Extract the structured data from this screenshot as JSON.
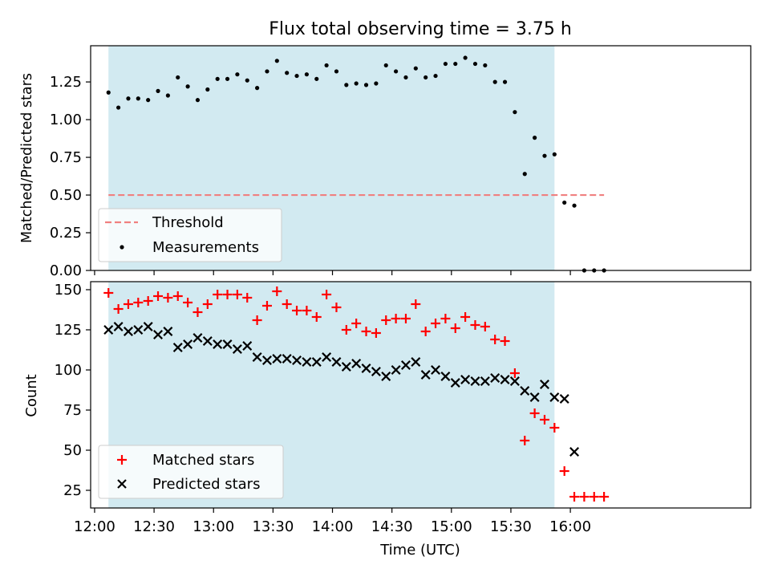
{
  "chart_data": [
    {
      "type": "scatter",
      "title": "Flux total observing time = 3.75 h",
      "xlabel": "",
      "ylabel": "Matched/Predicted stars",
      "xlim": [
        "11:58",
        "17:31"
      ],
      "ylim": [
        0,
        1.49
      ],
      "yticks": [
        0.0,
        0.25,
        0.5,
        0.75,
        1.0,
        1.25
      ],
      "ytick_labels": [
        "0.00",
        "0.25",
        "0.50",
        "0.75",
        "1.00",
        "1.25"
      ],
      "shaded_span": {
        "x0": "12:07",
        "x1": "15:52",
        "color": "#add8e6"
      },
      "threshold": {
        "name": "Threshold",
        "y": 0.5,
        "x0": "12:07",
        "x1": "16:17",
        "color": "#f08080",
        "style": "dashed"
      },
      "legend": {
        "position": "lower-left",
        "entries": [
          "Threshold",
          "Measurements"
        ]
      },
      "series": [
        {
          "name": "Measurements",
          "marker": "dot",
          "color": "#000000",
          "x": [
            "12:07",
            "12:12",
            "12:17",
            "12:22",
            "12:27",
            "12:32",
            "12:37",
            "12:42",
            "12:47",
            "12:52",
            "12:57",
            "13:02",
            "13:07",
            "13:12",
            "13:17",
            "13:22",
            "13:27",
            "13:32",
            "13:37",
            "13:42",
            "13:47",
            "13:52",
            "13:57",
            "14:02",
            "14:07",
            "14:12",
            "14:17",
            "14:22",
            "14:27",
            "14:32",
            "14:37",
            "14:42",
            "14:47",
            "14:52",
            "14:57",
            "15:02",
            "15:07",
            "15:12",
            "15:17",
            "15:22",
            "15:27",
            "15:32",
            "15:37",
            "15:42",
            "15:47",
            "15:52",
            "15:57",
            "16:02",
            "16:07",
            "16:12",
            "16:17"
          ],
          "values": [
            1.18,
            1.08,
            1.14,
            1.14,
            1.13,
            1.19,
            1.16,
            1.28,
            1.22,
            1.13,
            1.2,
            1.27,
            1.27,
            1.3,
            1.26,
            1.21,
            1.32,
            1.39,
            1.31,
            1.29,
            1.3,
            1.27,
            1.36,
            1.32,
            1.23,
            1.24,
            1.23,
            1.24,
            1.36,
            1.32,
            1.28,
            1.34,
            1.28,
            1.29,
            1.37,
            1.37,
            1.41,
            1.37,
            1.36,
            1.25,
            1.25,
            1.05,
            0.64,
            0.88,
            0.76,
            0.77,
            0.45,
            0.43,
            0.0,
            0.0,
            0.0
          ]
        }
      ]
    },
    {
      "type": "scatter",
      "title": "",
      "xlabel": "Time (UTC)",
      "ylabel": "Count",
      "xlim": [
        "11:58",
        "17:31"
      ],
      "xticks": [
        "12:00",
        "12:30",
        "13:00",
        "13:30",
        "14:00",
        "14:30",
        "15:00",
        "15:30",
        "16:00"
      ],
      "ylim": [
        14,
        155
      ],
      "yticks": [
        25,
        50,
        75,
        100,
        125,
        150
      ],
      "ytick_labels": [
        "25",
        "50",
        "75",
        "100",
        "125",
        "150"
      ],
      "shaded_span": {
        "x0": "12:07",
        "x1": "15:52",
        "color": "#add8e6"
      },
      "legend": {
        "position": "lower-left",
        "entries": [
          "Matched stars",
          "Predicted stars"
        ]
      },
      "series": [
        {
          "name": "Matched stars",
          "marker": "plus",
          "color": "#ff0000",
          "x": [
            "12:07",
            "12:12",
            "12:17",
            "12:22",
            "12:27",
            "12:32",
            "12:37",
            "12:42",
            "12:47",
            "12:52",
            "12:57",
            "13:02",
            "13:07",
            "13:12",
            "13:17",
            "13:22",
            "13:27",
            "13:32",
            "13:37",
            "13:42",
            "13:47",
            "13:52",
            "13:57",
            "14:02",
            "14:07",
            "14:12",
            "14:17",
            "14:22",
            "14:27",
            "14:32",
            "14:37",
            "14:42",
            "14:47",
            "14:52",
            "14:57",
            "15:02",
            "15:07",
            "15:12",
            "15:17",
            "15:22",
            "15:27",
            "15:32",
            "15:37",
            "15:42",
            "15:47",
            "15:52",
            "15:57",
            "16:02",
            "16:07",
            "16:12",
            "16:17"
          ],
          "values": [
            148,
            138,
            141,
            142,
            143,
            146,
            145,
            146,
            142,
            136,
            141,
            147,
            147,
            147,
            145,
            131,
            140,
            149,
            141,
            137,
            137,
            133,
            147,
            139,
            125,
            129,
            124,
            123,
            131,
            132,
            132,
            141,
            124,
            129,
            132,
            126,
            133,
            128,
            127,
            119,
            118,
            98,
            56,
            73,
            69,
            64,
            37,
            21,
            21,
            21,
            21
          ]
        },
        {
          "name": "Predicted stars",
          "marker": "x",
          "color": "#000000",
          "x": [
            "12:07",
            "12:12",
            "12:17",
            "12:22",
            "12:27",
            "12:32",
            "12:37",
            "12:42",
            "12:47",
            "12:52",
            "12:57",
            "13:02",
            "13:07",
            "13:12",
            "13:17",
            "13:22",
            "13:27",
            "13:32",
            "13:37",
            "13:42",
            "13:47",
            "13:52",
            "13:57",
            "14:02",
            "14:07",
            "14:12",
            "14:17",
            "14:22",
            "14:27",
            "14:32",
            "14:37",
            "14:42",
            "14:47",
            "14:52",
            "14:57",
            "15:02",
            "15:07",
            "15:12",
            "15:17",
            "15:22",
            "15:27",
            "15:32",
            "15:37",
            "15:42",
            "15:47",
            "15:52",
            "15:57",
            "16:02"
          ],
          "values": [
            125,
            127,
            124,
            125,
            127,
            122,
            124,
            114,
            116,
            120,
            118,
            116,
            116,
            113,
            115,
            108,
            106,
            107,
            107,
            106,
            105,
            105,
            108,
            105,
            102,
            104,
            101,
            99,
            96,
            100,
            103,
            105,
            97,
            100,
            96,
            92,
            94,
            93,
            93,
            95,
            94,
            93,
            87,
            83,
            91,
            83,
            82,
            49
          ]
        }
      ]
    }
  ]
}
